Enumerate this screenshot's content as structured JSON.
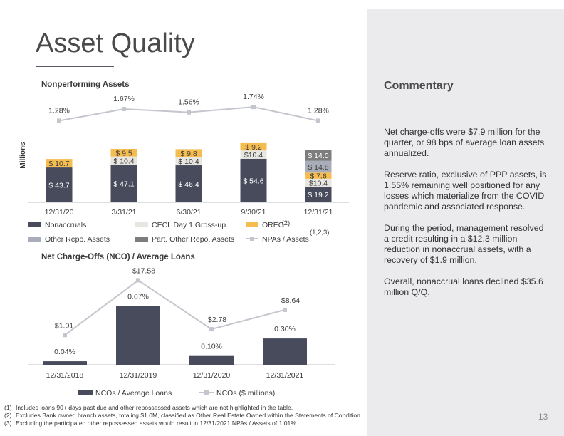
{
  "page": {
    "title": "Asset Quality",
    "page_number": "13"
  },
  "commentary": {
    "title": "Commentary",
    "paragraphs": [
      "Net charge-offs were $7.9 million for the quarter, or 98 bps of average loan assets annualized.",
      "Reserve ratio, exclusive of PPP assets, is 1.55% remaining well positioned for any losses which materialize from the COVID pandemic and associated response.",
      "During the period, management resolved a credit resulting in a $12.3 million reduction in nonaccrual assets, with a recovery of $1.9 million.",
      "Overall, nonaccrual loans declined $35.6 million Q/Q."
    ]
  },
  "footnotes": [
    {
      "num": "(1)",
      "text": "Includes loans 90+ days past due and other repossessed assets which are not highlighted in the table."
    },
    {
      "num": "(2)",
      "text": "Excludes Bank owned branch assets, totaling $1.0M, classified as Other Real Estate Owned within the Statements of Condition."
    },
    {
      "num": "(3)",
      "text": "Excluding the participated other repossessed assets  would result in 12/31/2021 NPAs / Assets of 1.01%"
    }
  ],
  "chart_data": [
    {
      "type": "bar",
      "stacked": true,
      "title": "Nonperforming Assets",
      "ylabel": "Millions",
      "categories": [
        "12/31/20",
        "3/31/21",
        "6/30/21",
        "9/30/21",
        "12/31/21"
      ],
      "series": [
        {
          "name": "Nonaccruals",
          "color": "#474b5c",
          "values": [
            43.7,
            47.1,
            46.4,
            54.6,
            19.2
          ],
          "labels": [
            "$ 43.7",
            "$ 47.1",
            "$ 46.4",
            "$ 54.6",
            "$ 19.2"
          ]
        },
        {
          "name": "CECL Day 1 Gross-up",
          "color": "#e8e6e1",
          "values": [
            0,
            10.4,
            10.4,
            10.4,
            10.4
          ],
          "labels": [
            "",
            "$ 10.4",
            "$ 10.4",
            "$10.4",
            "$10.4"
          ]
        },
        {
          "name": "OREO",
          "name_sup": "(2)",
          "color": "#f5bd4f",
          "values": [
            10.7,
            9.5,
            9.8,
            9.2,
            7.6
          ],
          "labels": [
            "$ 10.7",
            "$ 9.5",
            "$ 9.8",
            "$ 9.2",
            "$ 7.6"
          ]
        },
        {
          "name": "Other Repo. Assets",
          "color": "#a9acb9",
          "values": [
            0,
            0,
            0,
            0,
            14.8
          ],
          "labels": [
            "",
            "",
            "",
            "",
            "$ 14.8"
          ]
        },
        {
          "name": "Part. Other Repo. Assets",
          "color": "#7d7d7d",
          "values": [
            0,
            0,
            0,
            0,
            14.0
          ],
          "labels": [
            "",
            "",
            "",
            "",
            "$ 14.0"
          ]
        }
      ],
      "line": {
        "name": "NPAs / Assets",
        "name_sup": "(1,2,3)",
        "color": "#c4c6cd",
        "values": [
          1.28,
          1.67,
          1.56,
          1.74,
          1.28
        ],
        "labels": [
          "1.28%",
          "1.67%",
          "1.56%",
          "1.74%",
          "1.28%"
        ]
      },
      "legend_position": "bottom"
    },
    {
      "type": "bar",
      "title": "Net Charge-Offs (NCO) / Average Loans",
      "categories": [
        "12/31/2018",
        "12/31/2019",
        "12/31/2020",
        "12/31/2021"
      ],
      "series": [
        {
          "name": "NCOs / Average Loans",
          "color": "#474b5c",
          "values": [
            0.04,
            0.67,
            0.1,
            0.3
          ],
          "labels": [
            "0.04%",
            "0.67%",
            "0.10%",
            "0.30%"
          ]
        }
      ],
      "line": {
        "name": "NCOs ($ millions)",
        "color": "#c4c6cd",
        "values": [
          1.01,
          17.58,
          2.78,
          8.64
        ],
        "labels": [
          "$1.01",
          "$17.58",
          "$2.78",
          "$8.64"
        ]
      },
      "legend_position": "bottom"
    }
  ]
}
